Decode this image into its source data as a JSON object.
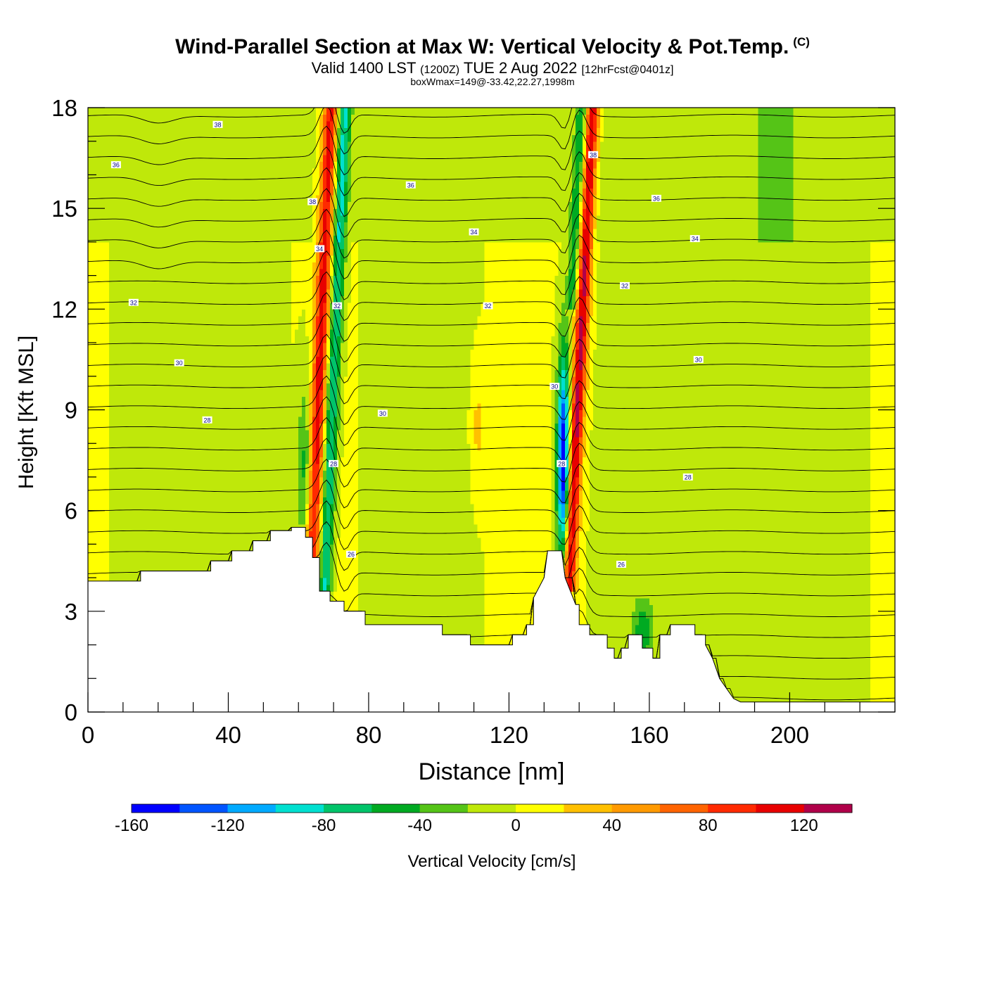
{
  "header": {
    "title": "Wind-Parallel Section at Max W: Vertical Velocity & Pot.Temp.",
    "copyright": "(C)",
    "valid_prefix": "Valid 1400 LST",
    "valid_utc": "(1200Z)",
    "valid_date": "TUE 2 Aug 2022",
    "forecast_tag": "[12hrFcst@0401z]",
    "box_max": "boxWmax=149@-33.42,22.27,1998m"
  },
  "chart_data": {
    "type": "heatmap",
    "xlabel": "Distance [nm]",
    "ylabel": "Height [Kft MSL]",
    "xlim": [
      0,
      230
    ],
    "ylim": [
      0,
      18
    ],
    "x_ticks": [
      0,
      40,
      80,
      120,
      160,
      200
    ],
    "y_ticks": [
      0,
      3,
      6,
      9,
      12,
      15,
      18
    ],
    "colorbar": {
      "label": "Vertical Velocity [cm/s]",
      "bounds": [
        -160,
        -140,
        -120,
        -100,
        -80,
        -60,
        -40,
        -20,
        0,
        20,
        40,
        60,
        80,
        100,
        120,
        140
      ],
      "colors": [
        "#0000ff",
        "#0055ff",
        "#00aaff",
        "#00e0d0",
        "#00c46a",
        "#00aa22",
        "#55c417",
        "#bfe80a",
        "#ffff00",
        "#ffc000",
        "#ff9a00",
        "#ff6400",
        "#ff2a00",
        "#e80000",
        "#b0004a"
      ],
      "tick_labels": [
        -160,
        -120,
        -80,
        -40,
        0,
        40,
        80,
        120
      ]
    },
    "contour_field": "Potential Temperature",
    "contour_labels": [
      {
        "x": 8,
        "y": 16.3,
        "text": "36"
      },
      {
        "x": 37,
        "y": 17.5,
        "text": "38"
      },
      {
        "x": 64,
        "y": 15.2,
        "text": "38"
      },
      {
        "x": 92,
        "y": 15.7,
        "text": "36"
      },
      {
        "x": 66,
        "y": 13.8,
        "text": "34"
      },
      {
        "x": 110,
        "y": 14.3,
        "text": "34"
      },
      {
        "x": 144,
        "y": 16.6,
        "text": "38"
      },
      {
        "x": 162,
        "y": 15.3,
        "text": "36"
      },
      {
        "x": 173,
        "y": 14.1,
        "text": "34"
      },
      {
        "x": 13,
        "y": 12.2,
        "text": "32"
      },
      {
        "x": 71,
        "y": 12.1,
        "text": "32"
      },
      {
        "x": 114,
        "y": 12.1,
        "text": "32"
      },
      {
        "x": 153,
        "y": 12.7,
        "text": "32"
      },
      {
        "x": 26,
        "y": 10.4,
        "text": "30"
      },
      {
        "x": 84,
        "y": 8.9,
        "text": "30"
      },
      {
        "x": 133,
        "y": 9.7,
        "text": "30"
      },
      {
        "x": 174,
        "y": 10.5,
        "text": "30"
      },
      {
        "x": 34,
        "y": 8.7,
        "text": "28"
      },
      {
        "x": 70,
        "y": 7.4,
        "text": "28"
      },
      {
        "x": 135,
        "y": 7.4,
        "text": "28"
      },
      {
        "x": 171,
        "y": 7.0,
        "text": "28"
      },
      {
        "x": 75,
        "y": 4.7,
        "text": "26"
      },
      {
        "x": 152,
        "y": 4.4,
        "text": "26"
      }
    ],
    "features": [
      {
        "type": "updraft",
        "x_center": 68,
        "z_range": [
          3.5,
          18
        ],
        "w_max": 110
      },
      {
        "type": "downdraft",
        "x_center": 72,
        "z_range": [
          3.5,
          18
        ],
        "w_min": -80
      },
      {
        "type": "updraft",
        "x_center": 140,
        "z_range": [
          3.5,
          18
        ],
        "w_max": 120
      },
      {
        "type": "downdraft",
        "x_center": 135,
        "z_range": [
          3.5,
          12
        ],
        "w_min": -150
      }
    ],
    "terrain": [
      [
        0,
        3.9
      ],
      [
        15,
        3.9
      ],
      [
        15,
        4.2
      ],
      [
        35,
        4.2
      ],
      [
        35,
        4.5
      ],
      [
        41,
        4.5
      ],
      [
        41,
        4.8
      ],
      [
        47,
        4.8
      ],
      [
        47,
        5.1
      ],
      [
        52,
        5.1
      ],
      [
        52,
        5.4
      ],
      [
        58,
        5.4
      ],
      [
        58,
        5.5
      ],
      [
        62,
        5.5
      ],
      [
        62,
        5.2
      ],
      [
        64,
        5.2
      ],
      [
        64,
        4.6
      ],
      [
        66,
        4.6
      ],
      [
        66,
        3.6
      ],
      [
        69,
        3.6
      ],
      [
        69,
        3.3
      ],
      [
        73,
        3.3
      ],
      [
        73,
        3.0
      ],
      [
        79,
        3.0
      ],
      [
        79,
        2.6
      ],
      [
        101,
        2.6
      ],
      [
        101,
        2.3
      ],
      [
        109,
        2.3
      ],
      [
        109,
        2.0
      ],
      [
        121,
        2.0
      ],
      [
        121,
        2.3
      ],
      [
        125,
        2.3
      ],
      [
        125,
        2.6
      ],
      [
        127,
        2.6
      ],
      [
        127,
        3.4
      ],
      [
        130,
        4.0
      ],
      [
        131,
        4.8
      ],
      [
        135,
        4.8
      ],
      [
        136,
        4.0
      ],
      [
        139,
        3.2
      ],
      [
        140,
        3.2
      ],
      [
        140,
        2.6
      ],
      [
        143,
        2.6
      ],
      [
        143,
        2.3
      ],
      [
        148,
        2.3
      ],
      [
        148,
        1.9
      ],
      [
        150,
        1.9
      ],
      [
        150,
        1.6
      ],
      [
        152,
        1.6
      ],
      [
        152,
        1.9
      ],
      [
        154,
        1.9
      ],
      [
        154,
        2.3
      ],
      [
        158,
        2.3
      ],
      [
        158,
        1.9
      ],
      [
        161,
        1.9
      ],
      [
        161,
        1.6
      ],
      [
        163,
        1.6
      ],
      [
        163,
        2.3
      ],
      [
        166,
        2.3
      ],
      [
        166,
        2.6
      ],
      [
        173,
        2.6
      ],
      [
        173,
        2.3
      ],
      [
        176,
        2.3
      ],
      [
        176,
        2.0
      ],
      [
        178,
        1.6
      ],
      [
        180,
        1.0
      ],
      [
        182,
        0.7
      ],
      [
        184,
        0.4
      ],
      [
        186,
        0.3
      ],
      [
        230,
        0.3
      ]
    ]
  }
}
